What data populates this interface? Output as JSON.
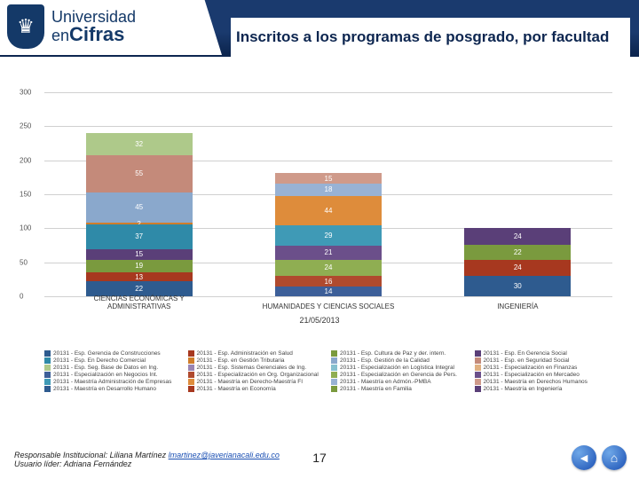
{
  "header": {
    "logo_top": "Universidad",
    "logo_en": "en",
    "logo_bot": "Cifras",
    "title": "Inscritos a los programas de posgrado, por facultad"
  },
  "chart": {
    "type": "stacked-bar",
    "ylim": [
      0,
      300
    ],
    "ytick_step": 50,
    "yticks": [
      0,
      50,
      100,
      150,
      200,
      250,
      300
    ],
    "background_color": "#ffffff",
    "grid_color": "#d0d0d0",
    "label_fontsize": 8,
    "categories": [
      "CIENCIAS ECONÓMICAS Y ADMINISTRATIVAS",
      "HUMANIDADES Y CIENCIAS SOCIALES",
      "INGENIERÍA"
    ],
    "date": "21/05/2013",
    "series_colors": [
      "#2e5b8f",
      "#a7381f",
      "#7a9a3e",
      "#5a3f78",
      "#2f8aa8",
      "#d07d2a",
      "#8aa8cc",
      "#c48a7a",
      "#aec98a",
      "#9a85b3",
      "#86c0cf",
      "#e0b081",
      "#3d5f99",
      "#b04a2e",
      "#8fae52",
      "#6b4f8a",
      "#3f9ab6",
      "#de8c3b",
      "#98b2d4",
      "#cf9a8a"
    ],
    "legend_labels": [
      "20131 - Esp. Gerencia de Construcciones",
      "20131 - Esp. Administración en Salud",
      "20131 - Esp. Cultura de Paz y der. intern.",
      "20131 - Esp. En Gerencia Social",
      "20131 - Esp. En Derecho Comercial",
      "20131 - Esp. en Gestión Tributaria",
      "20131 - Esp. Gestión de la Calidad",
      "20131 - Esp. en Seguridad Social",
      "20131 - Esp. Seg. Base de Datos en Ing.",
      "20131 - Esp. Sistemas Gerenciales de Ing.",
      "20131 - Especialización en Logística Integral",
      "20131 - Especialización en Finanzas",
      "20131 - Especialización en Negocios Int.",
      "20131 - Especialización en Org. Organizacional",
      "20131 - Especialización en Gerencia de Pers.",
      "20131 - Especialización en Mercadeo",
      "20131 - Maestría Administración de Empresas",
      "20131 - Maestría en Derecho-Maestría FI",
      "20131 - Maestría en Admón.-PMBA",
      "20131 - Maestría en Derechos Humanos",
      "20131 - Maestría en Desarrollo Humano",
      "20131 - Maestría en Economía",
      "20131 - Maestría en Familia",
      "20131 - Maestría en Ingeniería"
    ],
    "stacks": [
      {
        "segments": [
          {
            "v": 22,
            "c": "#2e5b8f"
          },
          {
            "v": 13,
            "c": "#a7381f"
          },
          {
            "v": 19,
            "c": "#7a9a3e"
          },
          {
            "v": 15,
            "c": "#5a3f78"
          },
          {
            "v": 37,
            "c": "#2f8aa8"
          },
          {
            "v": 2,
            "c": "#d07d2a"
          },
          {
            "v": 45,
            "c": "#8aa8cc"
          },
          {
            "v": 55,
            "c": "#c48a7a"
          },
          {
            "v": 32,
            "c": "#aec98a"
          }
        ]
      },
      {
        "segments": [
          {
            "v": 14,
            "c": "#3d5f99"
          },
          {
            "v": 16,
            "c": "#b04a2e"
          },
          {
            "v": 24,
            "c": "#8fae52"
          },
          {
            "v": 21,
            "c": "#6b4f8a"
          },
          {
            "v": 29,
            "c": "#3f9ab6"
          },
          {
            "v": 44,
            "c": "#de8c3b"
          },
          {
            "v": 18,
            "c": "#98b2d4"
          },
          {
            "v": 15,
            "c": "#cf9a8a"
          }
        ]
      },
      {
        "segments": [
          {
            "v": 30,
            "c": "#2e5b8f"
          },
          {
            "v": 24,
            "c": "#a7381f"
          },
          {
            "v": 22,
            "c": "#7a9a3e"
          },
          {
            "v": 24,
            "c": "#5a3f78"
          }
        ]
      }
    ]
  },
  "footer": {
    "line1_label": "Responsable Institucional: ",
    "line1_name": "Liliana Martínez ",
    "line1_link": "lmartinez@javerianacali.edu.co",
    "line2_label": "Usuario líder: ",
    "line2_name": "Adriana Fernández"
  },
  "page_number": "17",
  "nav": {
    "back": "◄",
    "home": "⌂"
  }
}
